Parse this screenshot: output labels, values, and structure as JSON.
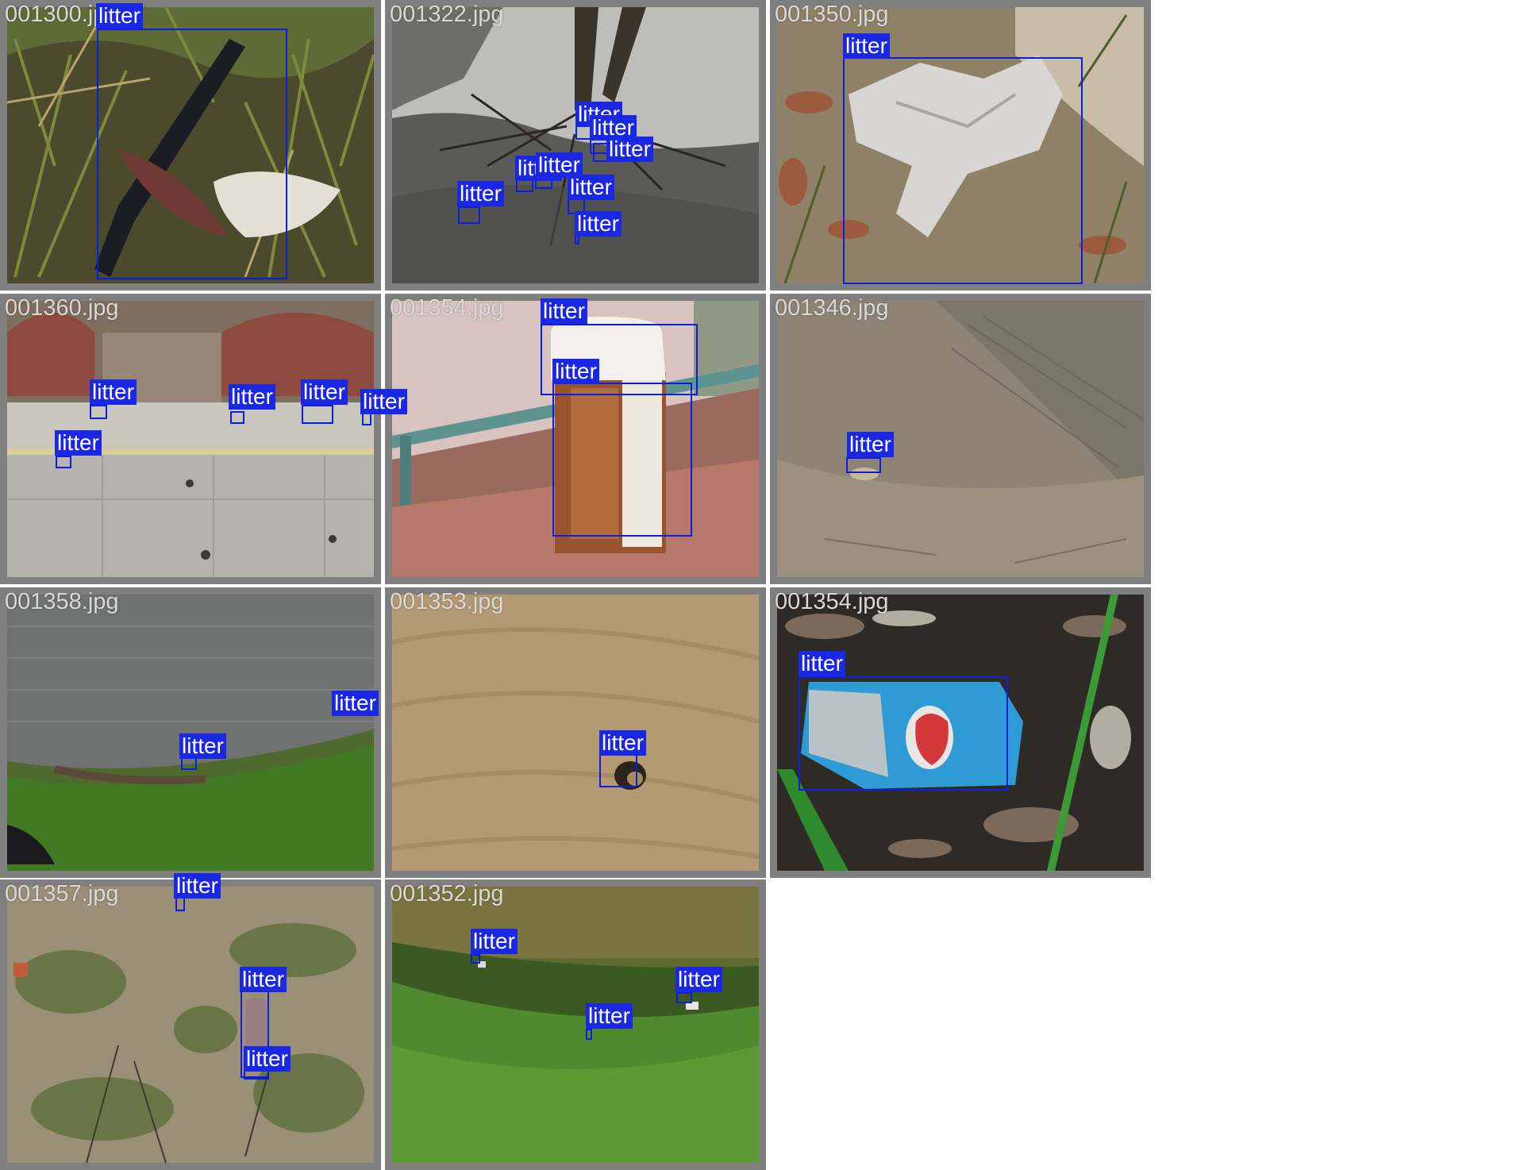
{
  "label_text": "litter",
  "tiles": [
    {
      "filename": "001300.jpg",
      "name": "tile-001300",
      "scene": "grass-debris"
    },
    {
      "filename": "001322.jpg",
      "name": "tile-001322",
      "scene": "tree-roots-shade"
    },
    {
      "filename": "001350.jpg",
      "name": "tile-001350",
      "scene": "tissue-on-sand"
    },
    {
      "filename": "001360.jpg",
      "name": "tile-001360",
      "scene": "sidewalk-wall"
    },
    {
      "filename": "001354.jpg",
      "name": "tile-001354",
      "scene": "coffee-cup-bench"
    },
    {
      "filename": "001346.jpg",
      "name": "tile-001346",
      "scene": "dirt-ground"
    },
    {
      "filename": "001358.jpg",
      "name": "tile-001358",
      "scene": "lake-shore"
    },
    {
      "filename": "001353.jpg",
      "name": "tile-001353",
      "scene": "sand-bottle-cap"
    },
    {
      "filename": "001354.jpg",
      "name": "tile-001354b",
      "scene": "mulch-wrapper"
    },
    {
      "filename": "001357.jpg",
      "name": "tile-001357",
      "scene": "patchy-ground"
    },
    {
      "filename": "001352.jpg",
      "name": "tile-001352",
      "scene": "grass-bank-water"
    }
  ]
}
